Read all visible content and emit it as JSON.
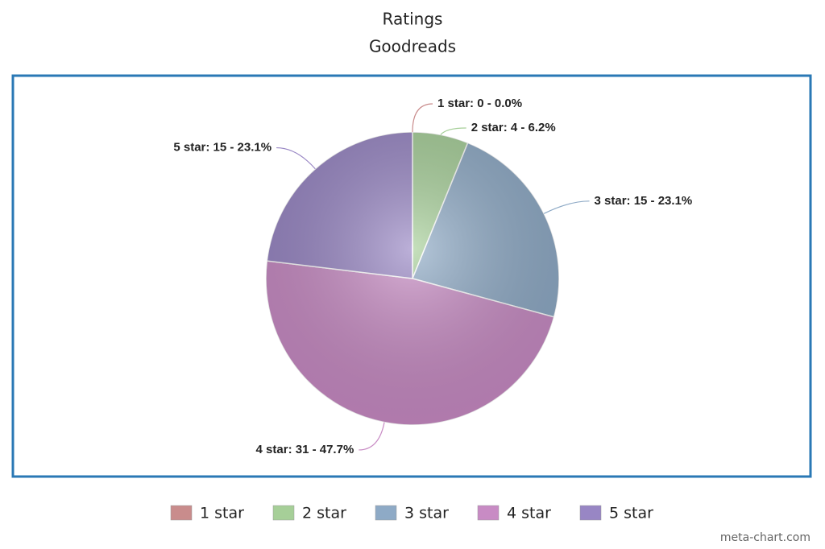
{
  "chart_data": {
    "type": "pie",
    "title": "Ratings",
    "subtitle": "Goodreads",
    "categories": [
      "1 star",
      "2 star",
      "3 star",
      "4 star",
      "5 star"
    ],
    "values": [
      0,
      4,
      15,
      31,
      15
    ],
    "value_labels": [
      "1 star: 0 - 0.0%",
      "2 star: 4 - 6.2%",
      "3 star: 15 - 23.1%",
      "4 star: 31 - 47.7%",
      "5 star: 15 - 23.1%"
    ],
    "colors": [
      "#c98c8c",
      "#a6cf98",
      "#8eaac6",
      "#c88bc4",
      "#9886c4"
    ],
    "credit": "meta-chart.com"
  }
}
